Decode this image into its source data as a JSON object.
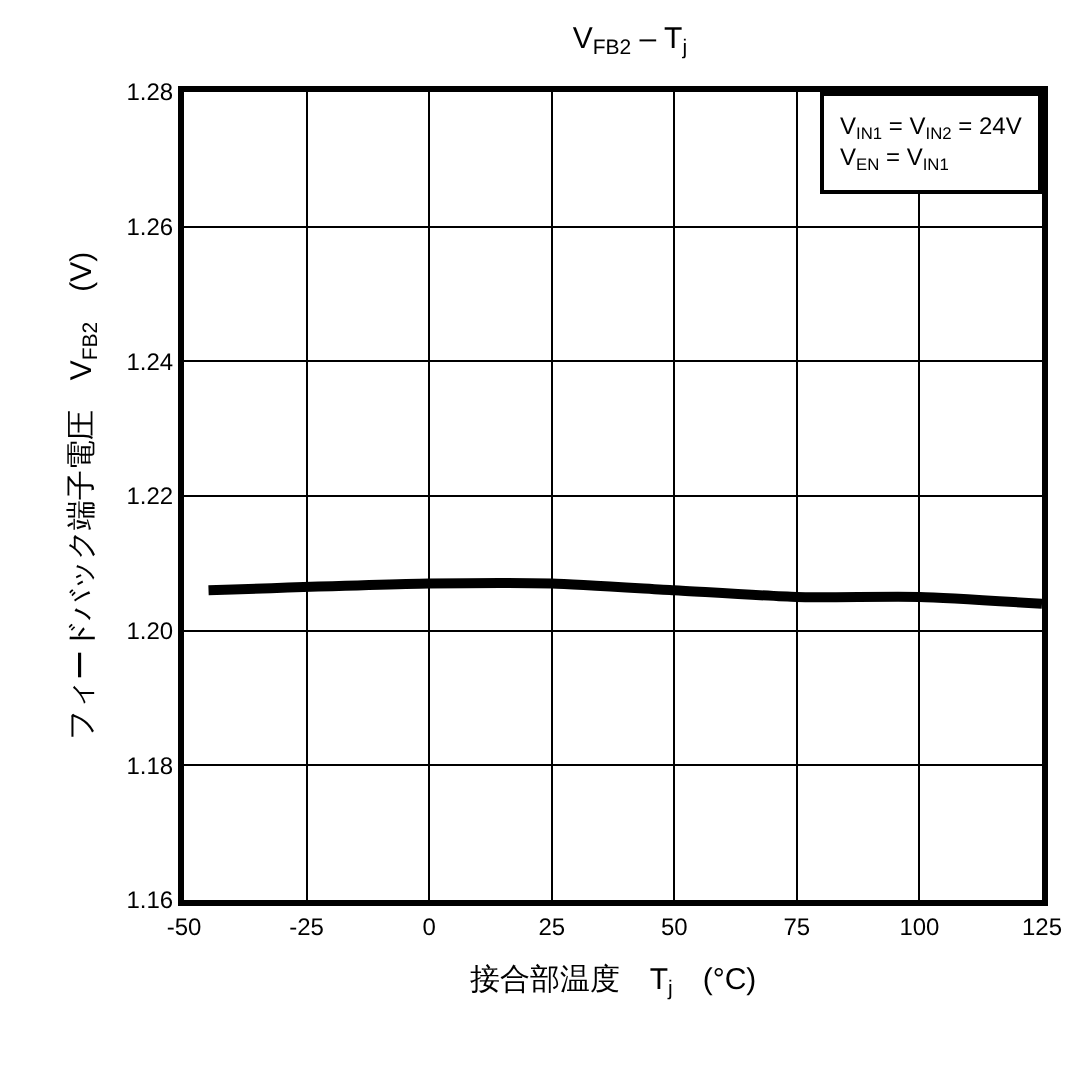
{
  "chart_data": {
    "type": "line",
    "title": "V$_{FB2}$ – T$_{j}$",
    "xlabel": "接合部温度　T$_{j}$　(°C)",
    "ylabel": "フィードバック端子電圧　V$_{FB2}$　(V)",
    "x": [
      -45,
      0,
      25,
      50,
      75,
      100,
      125
    ],
    "series": [
      {
        "color": "#000000",
        "values": [
          1.206,
          1.207,
          1.207,
          1.206,
          1.205,
          1.205,
          1.204
        ]
      }
    ],
    "xlim": [
      -50,
      125
    ],
    "xticks": [
      -50,
      -25,
      0,
      25,
      50,
      75,
      100,
      125
    ],
    "ylim": [
      1.16,
      1.28
    ],
    "yticks": [
      1.16,
      1.18,
      {
        "value": 1.2,
        "label": "1.20"
      },
      1.22,
      1.24,
      1.26,
      1.28
    ],
    "annotations": [
      "V$_{IN1}$ = V$_{IN2}$ = 24V\nV$_{EN}$ = V$_{IN1}$"
    ],
    "grid": true,
    "legend": false,
    "marker": "none",
    "line_style": "solid"
  }
}
